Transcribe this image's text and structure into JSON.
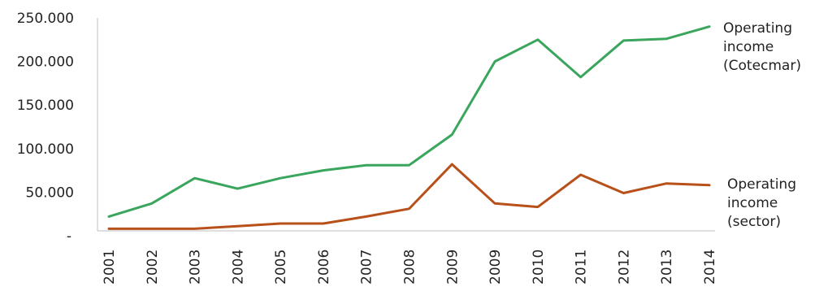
{
  "chart_data": {
    "type": "line",
    "categories": [
      "2001",
      "2002",
      "2003",
      "2004",
      "2005",
      "2006",
      "2007",
      "2008",
      "2009",
      "2009",
      "2010",
      "2011",
      "2012",
      "2013",
      "2014"
    ],
    "ylim": [
      0,
      250000
    ],
    "yticks": [
      0,
      50000,
      100000,
      150000,
      200000,
      250000
    ],
    "ytick_labels": [
      "-",
      "50.000",
      "100.000",
      "150.000",
      "200.000",
      "250.000"
    ],
    "grid": false,
    "series": [
      {
        "name": "Operating income (Cotecmar)",
        "label_lines": [
          "Operating",
          "income",
          "(Cotecmar)"
        ],
        "color": "#3aa65d",
        "values": [
          22000,
          37000,
          66000,
          54000,
          66000,
          75000,
          81000,
          81000,
          116000,
          200000,
          225000,
          182000,
          224000,
          226000,
          240000
        ]
      },
      {
        "name": "Operating income (sector)",
        "label_lines": [
          "Operating",
          "income",
          "(sector)"
        ],
        "color": "#b8501a",
        "values": [
          8000,
          8000,
          8000,
          11000,
          14000,
          14000,
          22000,
          31000,
          82000,
          37000,
          33000,
          70000,
          49000,
          60000,
          58000
        ]
      }
    ]
  }
}
